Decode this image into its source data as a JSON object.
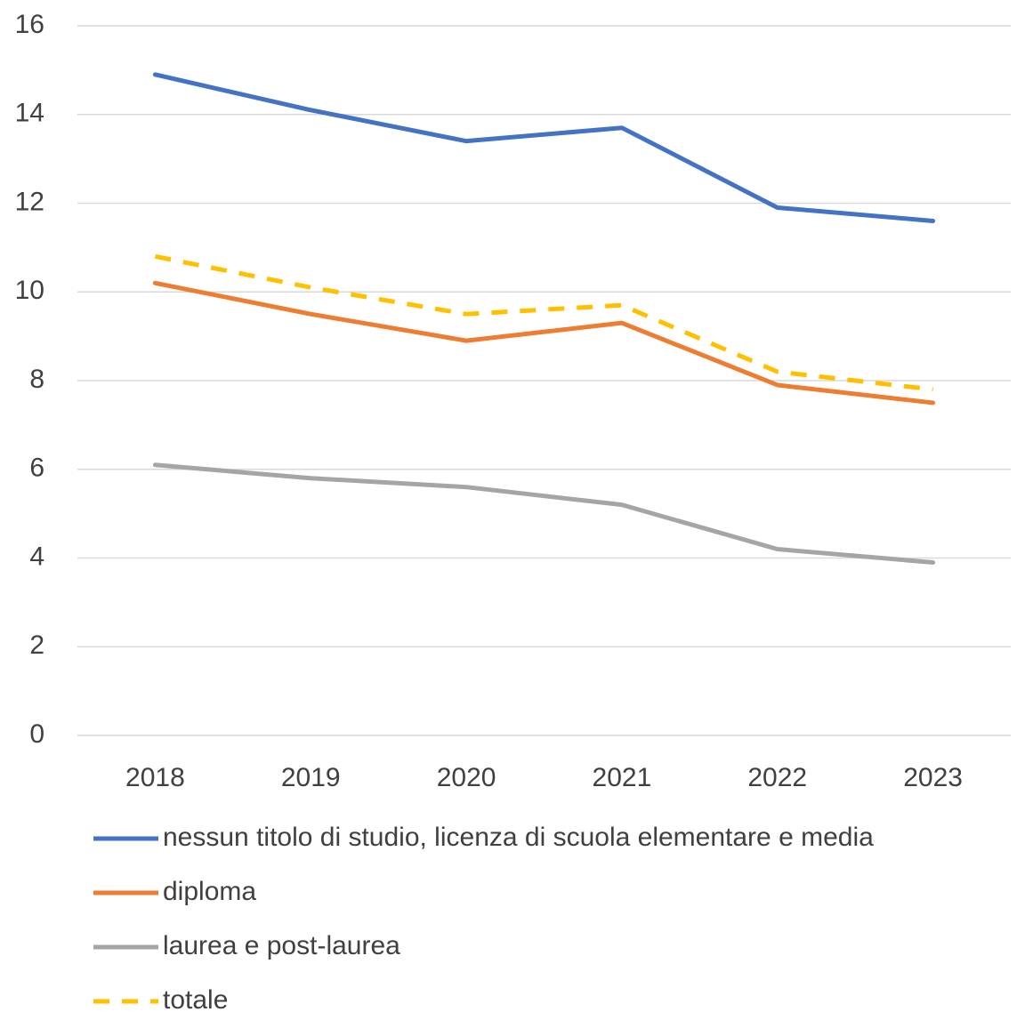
{
  "chart_data": {
    "type": "line",
    "categories": [
      "2018",
      "2019",
      "2020",
      "2021",
      "2022",
      "2023"
    ],
    "series": [
      {
        "name": "nessun titolo di studio, licenza di scuola elementare e media",
        "color": "#4472c4",
        "values": [
          14.9,
          14.1,
          13.4,
          13.7,
          11.9,
          11.6
        ]
      },
      {
        "name": "diploma",
        "color": "#ed7d31",
        "values": [
          10.2,
          9.5,
          8.9,
          9.3,
          7.9,
          7.5
        ]
      },
      {
        "name": "laurea e post-laurea",
        "color": "#a5a5a5",
        "values": [
          6.1,
          5.8,
          5.6,
          5.2,
          4.2,
          3.9
        ]
      },
      {
        "name": "totale",
        "color": "#ffc000",
        "dashed": true,
        "values": [
          10.8,
          10.1,
          9.5,
          9.7,
          8.2,
          7.8
        ]
      }
    ],
    "ylim": [
      0,
      16
    ],
    "yticks": [
      0,
      2,
      4,
      6,
      8,
      10,
      12,
      14,
      16
    ],
    "grid": true,
    "legend": "bottom"
  }
}
